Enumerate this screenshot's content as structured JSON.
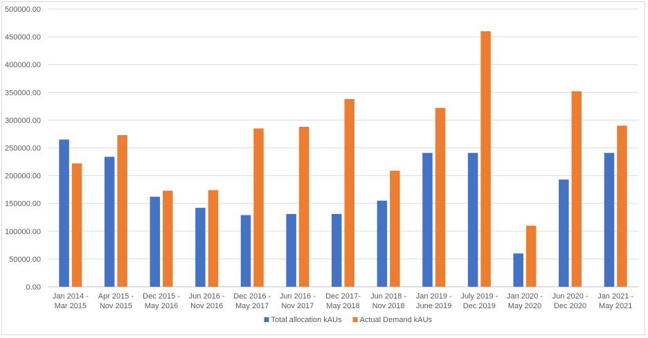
{
  "chart_data": {
    "type": "bar",
    "categories": [
      [
        "Jan 2014 -",
        "Mar  2015"
      ],
      [
        "Apr 2015 -",
        "Nov 2015"
      ],
      [
        "Dec 2015 -",
        "May 2016"
      ],
      [
        "Jun 2016 -",
        "Nov 2016"
      ],
      [
        "Dec 2016 -",
        "May 2017"
      ],
      [
        "Jun 2016 -",
        "Nov 2017"
      ],
      [
        "Dec 2017-",
        "May 2018"
      ],
      [
        "Jun 2018 -",
        "Nov 2018"
      ],
      [
        "Jan 2019 -",
        "June 2019"
      ],
      [
        "July 2019 -",
        "Dec 2019"
      ],
      [
        "Jan 2020 -",
        "May 2020"
      ],
      [
        "Jun 2020 -",
        "Dec 2020"
      ],
      [
        "Jan 2021 -",
        "May 2021"
      ]
    ],
    "series": [
      {
        "name": "Total allocation kAUs",
        "color": "#4472c4",
        "values": [
          265000,
          234000,
          162000,
          142000,
          129000,
          131000,
          131000,
          155000,
          241000,
          241000,
          60000,
          193000,
          241000
        ]
      },
      {
        "name": "Actual Demand kAUs",
        "color": "#ed7d31",
        "values": [
          222000,
          273000,
          173000,
          174000,
          285000,
          288000,
          338000,
          209000,
          322000,
          460000,
          110000,
          352000,
          290000
        ]
      }
    ],
    "yticks": [
      "0.00",
      "50000.00",
      "100000.00",
      "150000.00",
      "200000.00",
      "250000.00",
      "300000.00",
      "350000.00",
      "400000.00",
      "450000.00",
      "500000.00"
    ],
    "ylim": [
      0,
      500000
    ],
    "grid": true,
    "legend_position": "bottom",
    "gridline_color": "#d9d9d9",
    "axis_color": "#bfbfbf"
  }
}
